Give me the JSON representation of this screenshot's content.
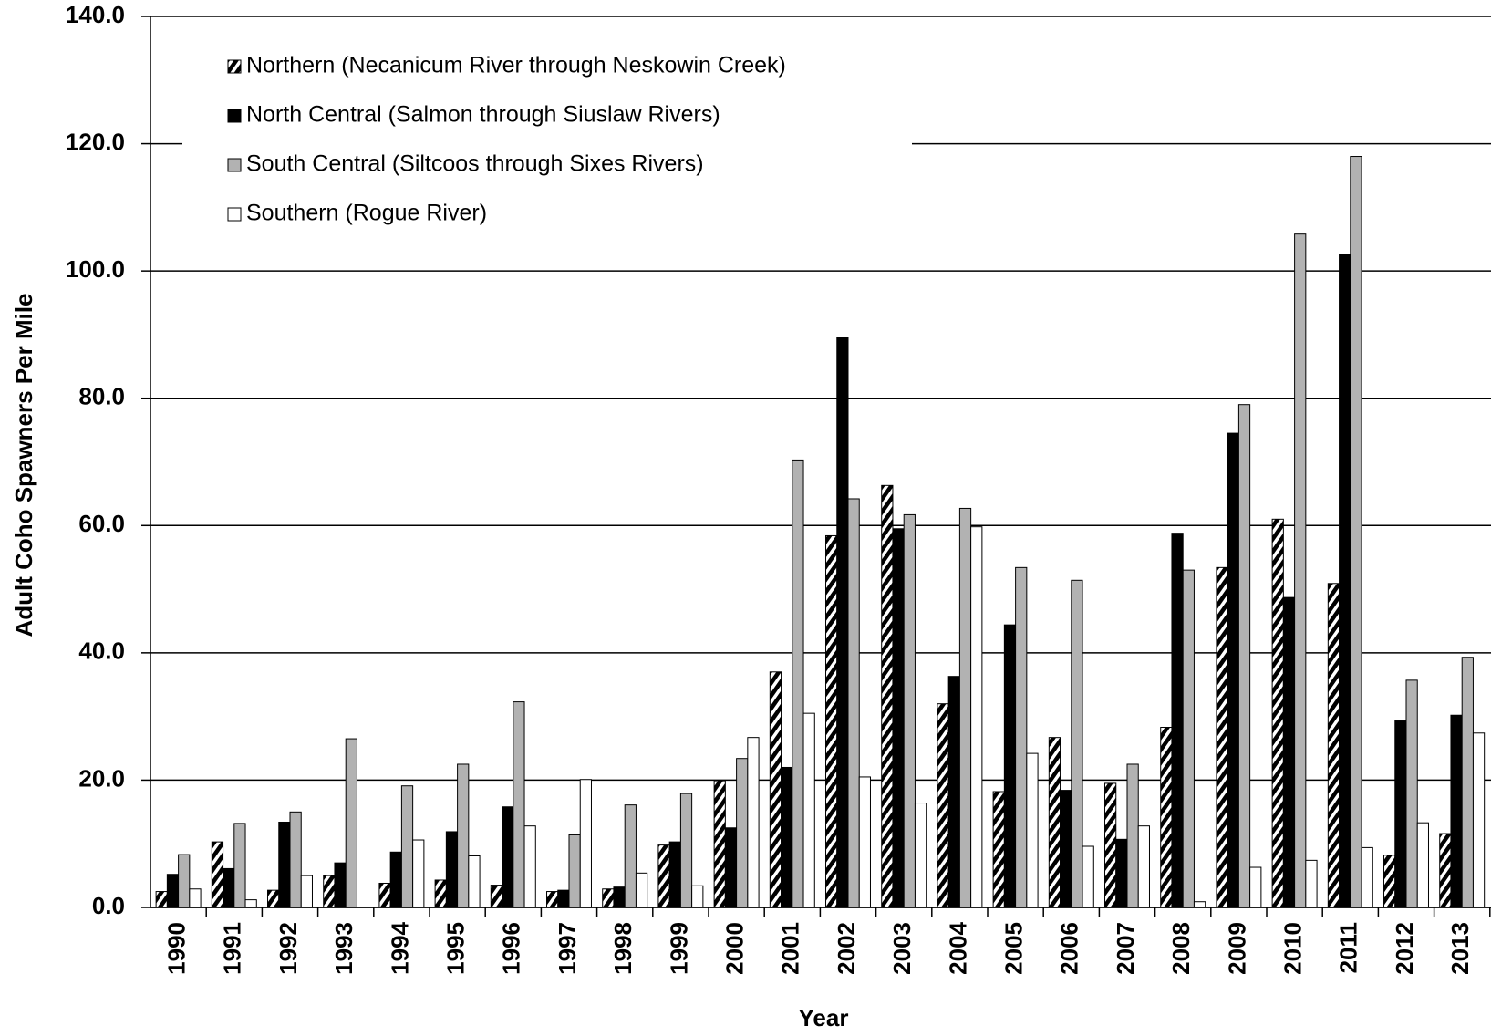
{
  "chart_data": {
    "type": "bar",
    "x_label": "Year",
    "y_label": "Adult Coho Spawners Per Mile",
    "categories": [
      "1990",
      "1991",
      "1992",
      "1993",
      "1994",
      "1995",
      "1996",
      "1997",
      "1998",
      "1999",
      "2000",
      "2001",
      "2002",
      "2003",
      "2004",
      "2005",
      "2006",
      "2007",
      "2008",
      "2009",
      "2010",
      "2011",
      "2012",
      "2013"
    ],
    "series": [
      {
        "name": "Northern (Necanicum River through Neskowin Creek)",
        "color": "#000000",
        "pattern": "hatch",
        "values": [
          2.5,
          10.3,
          2.7,
          5.0,
          3.8,
          4.3,
          3.5,
          2.5,
          2.9,
          9.8,
          19.9,
          37.0,
          58.4,
          66.3,
          32.0,
          18.2,
          26.7,
          19.5,
          28.3,
          53.4,
          61.0,
          50.9,
          8.2,
          11.6
        ]
      },
      {
        "name": "North Central (Salmon through Siuslaw Rivers)",
        "color": "#000000",
        "values": [
          5.2,
          6.1,
          13.4,
          7.0,
          8.7,
          11.9,
          15.8,
          2.7,
          3.2,
          10.3,
          12.5,
          22.0,
          89.5,
          59.5,
          36.3,
          44.4,
          18.4,
          10.7,
          58.8,
          74.5,
          48.7,
          102.6,
          29.3,
          30.2
        ]
      },
      {
        "name": "South Central (Siltcoos through Sixes Rivers)",
        "color": "#b2b2b2",
        "values": [
          8.3,
          13.2,
          15.0,
          26.5,
          19.1,
          22.5,
          32.3,
          11.4,
          16.1,
          17.9,
          23.4,
          70.3,
          64.2,
          61.7,
          62.7,
          53.4,
          51.4,
          22.5,
          53.0,
          79.0,
          105.8,
          118.0,
          35.7,
          39.3
        ]
      },
      {
        "name": "Southern (Rogue River)",
        "color": "#ffffff",
        "values": [
          2.9,
          1.2,
          5.0,
          0,
          10.6,
          8.1,
          12.8,
          20.1,
          5.4,
          3.4,
          26.7,
          30.5,
          20.5,
          16.4,
          59.8,
          24.2,
          9.6,
          12.8,
          0.9,
          6.3,
          7.4,
          9.4,
          13.3,
          27.4
        ]
      }
    ],
    "ylim": [
      0,
      140
    ],
    "yticks": [
      {
        "value": 0,
        "label": "0.0"
      },
      {
        "value": 20,
        "label": "20.0"
      },
      {
        "value": 40,
        "label": "40.0"
      },
      {
        "value": 60,
        "label": "60.0"
      },
      {
        "value": 80,
        "label": "80.0"
      },
      {
        "value": 100,
        "label": "100.0"
      },
      {
        "value": 120,
        "label": "120.0"
      },
      {
        "value": 140,
        "label": "140.0"
      }
    ],
    "grid": true
  }
}
